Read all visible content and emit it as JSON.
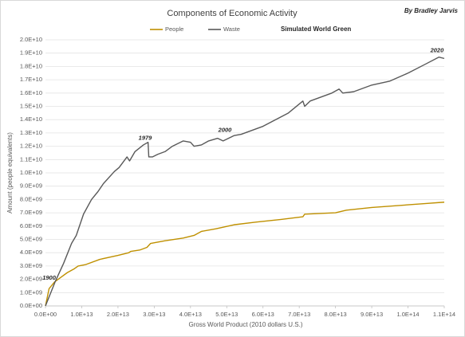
{
  "chart_data": {
    "type": "line",
    "title": "Components of Economic Activity",
    "author": "By Bradley Jarvis",
    "subtitle": "Simulated World Green",
    "x_label": "Gross World Product (2010 dollars U.S.)",
    "y_label": "Amount (people equivalents)",
    "grid": true,
    "legend": "top",
    "xlim": [
      0,
      110000000000000.0
    ],
    "ylim": [
      0,
      20000000000.0
    ],
    "xticks": [
      {
        "value": 0,
        "label": "0.0E+00"
      },
      {
        "value": 10000000000000.0,
        "label": "1.0E+13"
      },
      {
        "value": 20000000000000.0,
        "label": "2.0E+13"
      },
      {
        "value": 30000000000000.0,
        "label": "3.0E+13"
      },
      {
        "value": 40000000000000.0,
        "label": "4.0E+13"
      },
      {
        "value": 50000000000000.0,
        "label": "5.0E+13"
      },
      {
        "value": 60000000000000.0,
        "label": "6.0E+13"
      },
      {
        "value": 70000000000000.0,
        "label": "7.0E+13"
      },
      {
        "value": 80000000000000.0,
        "label": "8.0E+13"
      },
      {
        "value": 90000000000000.0,
        "label": "9.0E+13"
      },
      {
        "value": 100000000000000.0,
        "label": "1.0E+14"
      },
      {
        "value": 110000000000000.0,
        "label": "1.1E+14"
      }
    ],
    "yticks": [
      {
        "value": 0,
        "label": "0.0E+00"
      },
      {
        "value": 1000000000.0,
        "label": "1.0E+09"
      },
      {
        "value": 2000000000.0,
        "label": "2.0E+09"
      },
      {
        "value": 3000000000.0,
        "label": "3.0E+09"
      },
      {
        "value": 4000000000.0,
        "label": "4.0E+09"
      },
      {
        "value": 5000000000.0,
        "label": "5.0E+09"
      },
      {
        "value": 6000000000.0,
        "label": "6.0E+09"
      },
      {
        "value": 7000000000.0,
        "label": "7.0E+09"
      },
      {
        "value": 8000000000.0,
        "label": "8.0E+09"
      },
      {
        "value": 9000000000.0,
        "label": "9.0E+09"
      },
      {
        "value": 10000000000.0,
        "label": "1.0E+10"
      },
      {
        "value": 11000000000.0,
        "label": "1.1E+10"
      },
      {
        "value": 12000000000.0,
        "label": "1.2E+10"
      },
      {
        "value": 13000000000.0,
        "label": "1.3E+10"
      },
      {
        "value": 14000000000.0,
        "label": "1.4E+10"
      },
      {
        "value": 15000000000.0,
        "label": "1.5E+10"
      },
      {
        "value": 16000000000.0,
        "label": "1.6E+10"
      },
      {
        "value": 17000000000.0,
        "label": "1.7E+10"
      },
      {
        "value": 18000000000.0,
        "label": "1.8E+10"
      },
      {
        "value": 19000000000.0,
        "label": "1.9E+10"
      },
      {
        "value": 20000000000.0,
        "label": "2.0E+10"
      }
    ],
    "series": [
      {
        "name": "People",
        "color": "#bf9000",
        "x": [
          0,
          1000000000000.0,
          2500000000000.0,
          4000000000000.0,
          6000000000000.0,
          8000000000000.0,
          9000000000000.0,
          11000000000000.0,
          15000000000000.0,
          20000000000000.0,
          23000000000000.0,
          23500000000000.0,
          26000000000000.0,
          28000000000000.0,
          29000000000000.0,
          33000000000000.0,
          38000000000000.0,
          41000000000000.0,
          43000000000000.0,
          47000000000000.0,
          52000000000000.0,
          58000000000000.0,
          65000000000000.0,
          71000000000000.0,
          71500000000000.0,
          80000000000000.0,
          83000000000000.0,
          90000000000000.0,
          100000000000000.0,
          105000000000000.0,
          110000000000000.0
        ],
        "values": [
          0,
          1300000000.0,
          1800000000.0,
          2100000000.0,
          2500000000.0,
          2800000000.0,
          3000000000.0,
          3100000000.0,
          3500000000.0,
          3800000000.0,
          4000000000.0,
          4100000000.0,
          4200000000.0,
          4400000000.0,
          4700000000.0,
          4900000000.0,
          5100000000.0,
          5300000000.0,
          5600000000.0,
          5800000000.0,
          6100000000.0,
          6300000000.0,
          6500000000.0,
          6700000000.0,
          6900000000.0,
          7000000000.0,
          7200000000.0,
          7400000000.0,
          7600000000.0,
          7700000000.0,
          7800000000.0
        ]
      },
      {
        "name": "Waste",
        "color": "#595959",
        "x": [
          0,
          2800000000000.0,
          5000000000000.0,
          7200000000000.0,
          8500000000000.0,
          10500000000000.0,
          12700000000000.0,
          14500000000000.0,
          16000000000000.0,
          19000000000000.0,
          20300000000000.0,
          22500000000000.0,
          23200000000000.0,
          24700000000000.0,
          27000000000000.0,
          28300000000000.0,
          28500000000000.0,
          29500000000000.0,
          31000000000000.0,
          33000000000000.0,
          35000000000000.0,
          38000000000000.0,
          40000000000000.0,
          41000000000000.0,
          43000000000000.0,
          45000000000000.0,
          47500000000000.0,
          49000000000000.0,
          52000000000000.0,
          54000000000000.0,
          60000000000000.0,
          67000000000000.0,
          71000000000000.0,
          71500000000000.0,
          73000000000000.0,
          79000000000000.0,
          81000000000000.0,
          82000000000000.0,
          85000000000000.0,
          90000000000000.0,
          95000000000000.0,
          100000000000000.0,
          105000000000000.0,
          108500000000000.0,
          110000000000000.0
        ],
        "values": [
          0,
          1900000000.0,
          3200000000.0,
          4700000000.0,
          5300000000.0,
          6900000000.0,
          8000000000.0,
          8600000000.0,
          9200000000.0,
          10100000000.0,
          10400000000.0,
          11200000000.0,
          10900000000.0,
          11600000000.0,
          12100000000.0,
          12300000000.0,
          11200000000.0,
          11200000000.0,
          11400000000.0,
          11600000000.0,
          12000000000.0,
          12400000000.0,
          12300000000.0,
          12000000000.0,
          12100000000.0,
          12400000000.0,
          12600000000.0,
          12400000000.0,
          12800000000.0,
          12900000000.0,
          13500000000.0,
          14500000000.0,
          15400000000.0,
          15000000000.0,
          15400000000.0,
          16000000000.0,
          16300000000.0,
          16000000000.0,
          16100000000.0,
          16600000000.0,
          16900000000.0,
          17500000000.0,
          18200000000.0,
          18700000000.0,
          18600000000.0
        ]
      }
    ],
    "annotations": [
      {
        "text": "1900",
        "x": 1000000000000.0,
        "y": 2100000000.0
      },
      {
        "text": "1979",
        "x": 27500000000000.0,
        "y": 12600000000.0
      },
      {
        "text": "2000",
        "x": 49500000000000.0,
        "y": 13200000000.0
      },
      {
        "text": "2020",
        "x": 108000000000000.0,
        "y": 19200000000.0
      }
    ]
  }
}
